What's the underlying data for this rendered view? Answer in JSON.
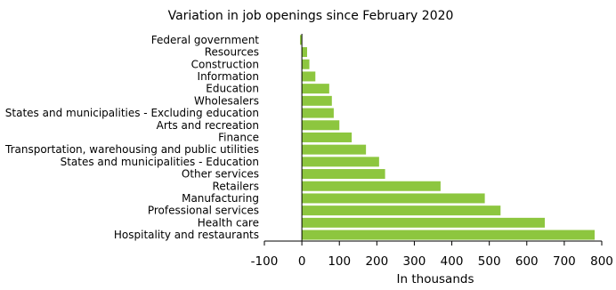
{
  "chart_data": {
    "type": "bar",
    "orientation": "horizontal",
    "title": "Variation in job openings since February 2020",
    "xlabel": "In thousands",
    "ylabel": "",
    "xlim": [
      -100,
      800
    ],
    "xticks": [
      -100,
      0,
      100,
      200,
      300,
      400,
      500,
      600,
      700,
      800
    ],
    "grid": false,
    "bar_color": "#8dc63f",
    "categories": [
      "Federal government",
      "Resources",
      "Construction",
      "Information",
      "Education",
      "Wholesalers",
      "States and municipalities - Excluding education",
      "Arts and recreation",
      "Finance",
      "Transportation, warehousing and public utilities",
      "States and municipalities - Education",
      "Other services",
      "Retailers",
      "Manufacturing",
      "Professional services",
      "Health care",
      "Hospitality and restaurants"
    ],
    "values": [
      -5,
      14,
      20,
      36,
      73,
      80,
      85,
      100,
      133,
      171,
      206,
      222,
      370,
      488,
      530,
      648,
      781
    ]
  }
}
